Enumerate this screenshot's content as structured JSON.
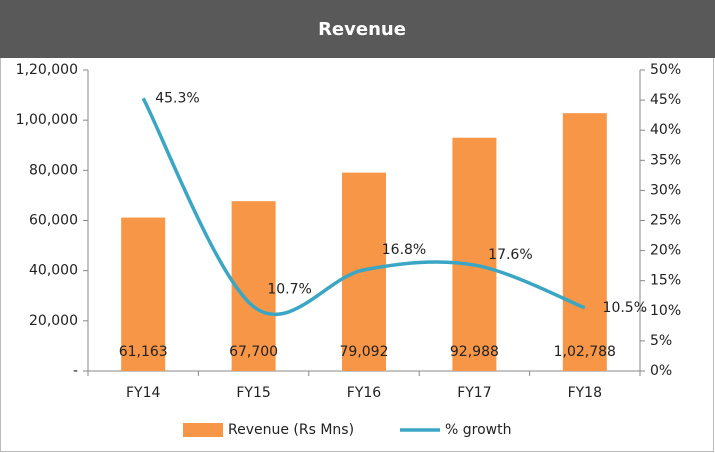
{
  "chart_data": {
    "type": "combo",
    "title": "Revenue",
    "categories": [
      "FY14",
      "FY15",
      "FY16",
      "FY17",
      "FY18"
    ],
    "series": [
      {
        "name": "Revenue (Rs Mns)",
        "type": "bar",
        "color": "#f79646",
        "values": [
          61163,
          67700,
          79092,
          92988,
          102788
        ],
        "value_labels": [
          "61,163",
          "67,700",
          "79,092",
          "92,988",
          "1,02,788"
        ]
      },
      {
        "name": "% growth",
        "type": "line",
        "axis": "y2",
        "color": "#3ba6c4",
        "values": [
          45.3,
          10.7,
          16.8,
          17.6,
          10.5
        ],
        "value_labels": [
          "45.3%",
          "10.7%",
          "16.8%",
          "17.6%",
          "10.5%"
        ]
      }
    ],
    "ylim": [
      0,
      120000
    ],
    "yticks": [
      {
        "value": 0,
        "label": "-"
      },
      {
        "value": 20000,
        "label": "20,000"
      },
      {
        "value": 40000,
        "label": "40,000"
      },
      {
        "value": 60000,
        "label": "60,000"
      },
      {
        "value": 80000,
        "label": "80,000"
      },
      {
        "value": 100000,
        "label": "1,00,000"
      },
      {
        "value": 120000,
        "label": "1,20,000"
      }
    ],
    "y2lim": [
      0,
      50
    ],
    "y2ticks": [
      {
        "value": 0,
        "label": "0%"
      },
      {
        "value": 5,
        "label": "5%"
      },
      {
        "value": 10,
        "label": "10%"
      },
      {
        "value": 15,
        "label": "15%"
      },
      {
        "value": 20,
        "label": "20%"
      },
      {
        "value": 25,
        "label": "25%"
      },
      {
        "value": 30,
        "label": "30%"
      },
      {
        "value": 35,
        "label": "35%"
      },
      {
        "value": 40,
        "label": "40%"
      },
      {
        "value": 45,
        "label": "45%"
      },
      {
        "value": 50,
        "label": "50%"
      }
    ],
    "legend": "bottom"
  }
}
